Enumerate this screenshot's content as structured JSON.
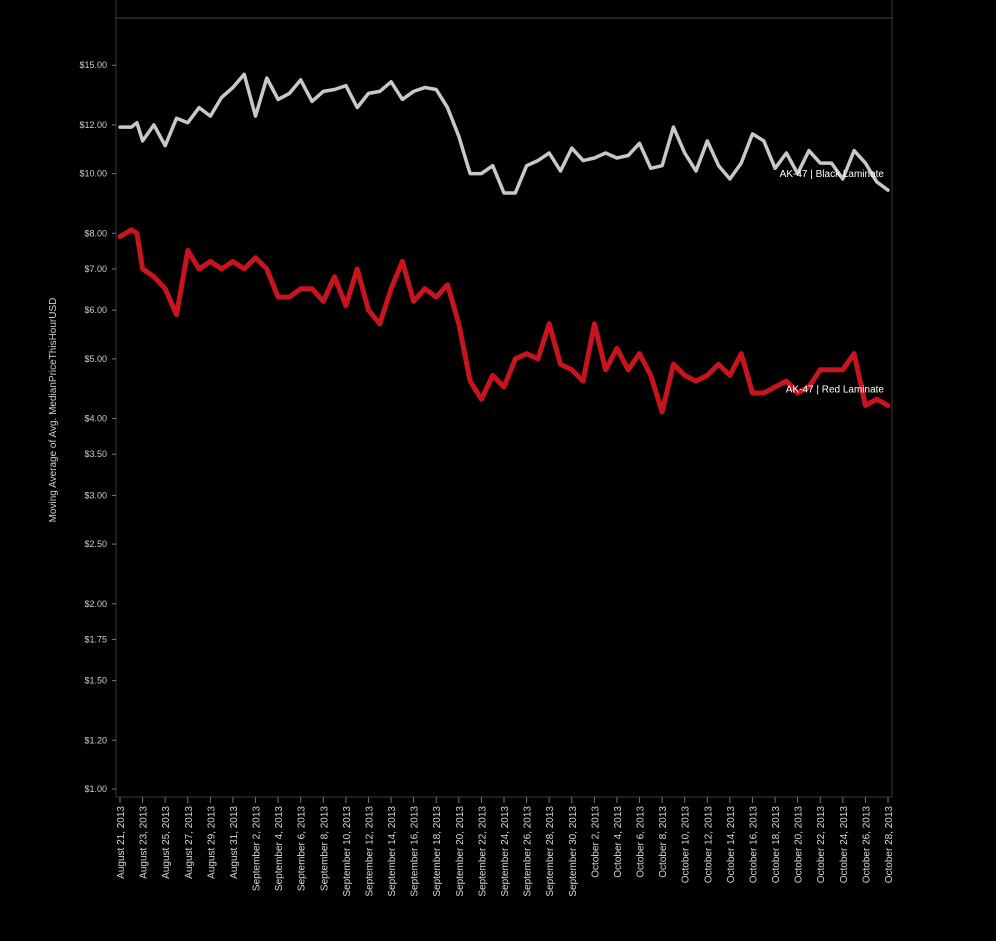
{
  "chart_data": {
    "type": "line",
    "ylabel": "Moving Average of Avg. MedianPriceThisHourUSD",
    "xlabel": "",
    "y_scale": "log",
    "ylim": [
      1.0,
      16.0
    ],
    "grid": false,
    "legend": "inline labels at line ends",
    "y_ticks": [
      {
        "value": 15,
        "label": "$15.00"
      },
      {
        "value": 12,
        "label": "$12.00"
      },
      {
        "value": 10,
        "label": "$10.00"
      },
      {
        "value": 8,
        "label": "$8.00"
      },
      {
        "value": 7,
        "label": "$7.00"
      },
      {
        "value": 6,
        "label": "$6.00"
      },
      {
        "value": 5,
        "label": "$5.00"
      },
      {
        "value": 4,
        "label": "$4.00"
      },
      {
        "value": 3.5,
        "label": "$3.50"
      },
      {
        "value": 3,
        "label": "$3.00"
      },
      {
        "value": 2.5,
        "label": "$2.50"
      },
      {
        "value": 2,
        "label": "$2.00"
      },
      {
        "value": 1.75,
        "label": "$1.75"
      },
      {
        "value": 1.5,
        "label": "$1.50"
      },
      {
        "value": 1.2,
        "label": "$1.20"
      },
      {
        "value": 1,
        "label": "$1.00"
      }
    ],
    "x_ticks": [
      "August 21, 2013",
      "August 23, 2013",
      "August 25, 2013",
      "August 27, 2013",
      "August 29, 2013",
      "August 31, 2013",
      "September 2, 2013",
      "September 4, 2013",
      "September 6, 2013",
      "September 8, 2013",
      "September 10, 2013",
      "September 12, 2013",
      "September 14, 2013",
      "September 16, 2013",
      "September 18, 2013",
      "September 20, 2013",
      "September 22, 2013",
      "September 24, 2013",
      "September 26, 2013",
      "September 28, 2013",
      "September 30, 2013",
      "October 2, 2013",
      "October 4, 2013",
      "October 6, 2013",
      "October 8, 2013",
      "October 10, 2013",
      "October 12, 2013",
      "October 14, 2013",
      "October 16, 2013",
      "October 18, 2013",
      "October 20, 2013",
      "October 22, 2013",
      "October 24, 2013",
      "October 26, 2013",
      "October 28, 2013"
    ],
    "x_start": "August 21, 2013",
    "x_end": "October 28, 2013",
    "series": [
      {
        "name": "AK-47 | Black Laminate",
        "color": "#c8c8c8",
        "points": [
          [
            "2013-08-21",
            11.9
          ],
          [
            "2013-08-22",
            11.9
          ],
          [
            "2013-08-22",
            12.1
          ],
          [
            "2013-08-23",
            11.3
          ],
          [
            "2013-08-24",
            12.0
          ],
          [
            "2013-08-25",
            11.1
          ],
          [
            "2013-08-26",
            12.3
          ],
          [
            "2013-08-27",
            12.1
          ],
          [
            "2013-08-28",
            12.8
          ],
          [
            "2013-08-29",
            12.4
          ],
          [
            "2013-08-30",
            13.3
          ],
          [
            "2013-08-31",
            13.8
          ],
          [
            "2013-09-01",
            14.5
          ],
          [
            "2013-09-02",
            12.4
          ],
          [
            "2013-09-03",
            14.3
          ],
          [
            "2013-09-04",
            13.2
          ],
          [
            "2013-09-05",
            13.5
          ],
          [
            "2013-09-06",
            14.2
          ],
          [
            "2013-09-07",
            13.1
          ],
          [
            "2013-09-08",
            13.6
          ],
          [
            "2013-09-09",
            13.7
          ],
          [
            "2013-09-10",
            13.9
          ],
          [
            "2013-09-11",
            12.8
          ],
          [
            "2013-09-12",
            13.5
          ],
          [
            "2013-09-13",
            13.6
          ],
          [
            "2013-09-14",
            14.1
          ],
          [
            "2013-09-15",
            13.2
          ],
          [
            "2013-09-16",
            13.6
          ],
          [
            "2013-09-17",
            13.8
          ],
          [
            "2013-09-18",
            13.7
          ],
          [
            "2013-09-19",
            12.8
          ],
          [
            "2013-09-20",
            11.5
          ],
          [
            "2013-09-21",
            10.0
          ],
          [
            "2013-09-22",
            10.0
          ],
          [
            "2013-09-23",
            10.3
          ],
          [
            "2013-09-24",
            9.3
          ],
          [
            "2013-09-25",
            9.3
          ],
          [
            "2013-09-26",
            10.3
          ],
          [
            "2013-09-27",
            10.5
          ],
          [
            "2013-09-28",
            10.8
          ],
          [
            "2013-09-29",
            10.1
          ],
          [
            "2013-09-30",
            11.0
          ],
          [
            "2013-10-01",
            10.5
          ],
          [
            "2013-10-02",
            10.6
          ],
          [
            "2013-10-03",
            10.8
          ],
          [
            "2013-10-04",
            10.6
          ],
          [
            "2013-10-05",
            10.7
          ],
          [
            "2013-10-06",
            11.2
          ],
          [
            "2013-10-07",
            10.2
          ],
          [
            "2013-10-08",
            10.3
          ],
          [
            "2013-10-09",
            11.9
          ],
          [
            "2013-10-10",
            10.8
          ],
          [
            "2013-10-11",
            10.1
          ],
          [
            "2013-10-12",
            11.3
          ],
          [
            "2013-10-13",
            10.3
          ],
          [
            "2013-10-14",
            9.8
          ],
          [
            "2013-10-15",
            10.4
          ],
          [
            "2013-10-16",
            11.6
          ],
          [
            "2013-10-17",
            11.3
          ],
          [
            "2013-10-18",
            10.2
          ],
          [
            "2013-10-19",
            10.8
          ],
          [
            "2013-10-20",
            10.0
          ],
          [
            "2013-10-21",
            10.9
          ],
          [
            "2013-10-22",
            10.4
          ],
          [
            "2013-10-23",
            10.4
          ],
          [
            "2013-10-24",
            9.8
          ],
          [
            "2013-10-25",
            10.9
          ],
          [
            "2013-10-26",
            10.4
          ],
          [
            "2013-10-27",
            9.7
          ],
          [
            "2013-10-28",
            9.4
          ]
        ]
      },
      {
        "name": "AK-47 | Red Laminate",
        "color": "#c8141c",
        "points": [
          [
            "2013-08-21",
            7.9
          ],
          [
            "2013-08-22",
            8.1
          ],
          [
            "2013-08-22",
            8.0
          ],
          [
            "2013-08-23",
            7.0
          ],
          [
            "2013-08-24",
            6.8
          ],
          [
            "2013-08-25",
            6.5
          ],
          [
            "2013-08-26",
            5.9
          ],
          [
            "2013-08-27",
            7.5
          ],
          [
            "2013-08-28",
            7.0
          ],
          [
            "2013-08-29",
            7.2
          ],
          [
            "2013-08-30",
            7.0
          ],
          [
            "2013-08-31",
            7.2
          ],
          [
            "2013-09-01",
            7.0
          ],
          [
            "2013-09-02",
            7.3
          ],
          [
            "2013-09-03",
            7.0
          ],
          [
            "2013-09-04",
            6.3
          ],
          [
            "2013-09-05",
            6.3
          ],
          [
            "2013-09-06",
            6.5
          ],
          [
            "2013-09-07",
            6.5
          ],
          [
            "2013-09-08",
            6.2
          ],
          [
            "2013-09-09",
            6.8
          ],
          [
            "2013-09-10",
            6.1
          ],
          [
            "2013-09-11",
            7.0
          ],
          [
            "2013-09-12",
            6.0
          ],
          [
            "2013-09-13",
            5.7
          ],
          [
            "2013-09-14",
            6.5
          ],
          [
            "2013-09-15",
            7.2
          ],
          [
            "2013-09-16",
            6.2
          ],
          [
            "2013-09-17",
            6.5
          ],
          [
            "2013-09-18",
            6.3
          ],
          [
            "2013-09-19",
            6.6
          ],
          [
            "2013-09-20",
            5.7
          ],
          [
            "2013-09-21",
            4.6
          ],
          [
            "2013-09-22",
            4.3
          ],
          [
            "2013-09-23",
            4.7
          ],
          [
            "2013-09-24",
            4.5
          ],
          [
            "2013-09-25",
            5.0
          ],
          [
            "2013-09-26",
            5.1
          ],
          [
            "2013-09-27",
            5.0
          ],
          [
            "2013-09-28",
            5.7
          ],
          [
            "2013-09-29",
            4.9
          ],
          [
            "2013-09-30",
            4.8
          ],
          [
            "2013-10-01",
            4.6
          ],
          [
            "2013-10-02",
            5.7
          ],
          [
            "2013-10-03",
            4.8
          ],
          [
            "2013-10-04",
            5.2
          ],
          [
            "2013-10-05",
            4.8
          ],
          [
            "2013-10-06",
            5.1
          ],
          [
            "2013-10-07",
            4.7
          ],
          [
            "2013-10-08",
            4.1
          ],
          [
            "2013-10-09",
            4.9
          ],
          [
            "2013-10-10",
            4.7
          ],
          [
            "2013-10-11",
            4.6
          ],
          [
            "2013-10-12",
            4.7
          ],
          [
            "2013-10-13",
            4.9
          ],
          [
            "2013-10-14",
            4.7
          ],
          [
            "2013-10-15",
            5.1
          ],
          [
            "2013-10-16",
            4.4
          ],
          [
            "2013-10-17",
            4.4
          ],
          [
            "2013-10-18",
            4.5
          ],
          [
            "2013-10-19",
            4.6
          ],
          [
            "2013-10-20",
            4.4
          ],
          [
            "2013-10-21",
            4.5
          ],
          [
            "2013-10-22",
            4.8
          ],
          [
            "2013-10-23",
            4.8
          ],
          [
            "2013-10-24",
            4.8
          ],
          [
            "2013-10-25",
            5.1
          ],
          [
            "2013-10-26",
            4.2
          ],
          [
            "2013-10-27",
            4.3
          ],
          [
            "2013-10-28",
            4.2
          ]
        ]
      }
    ]
  }
}
